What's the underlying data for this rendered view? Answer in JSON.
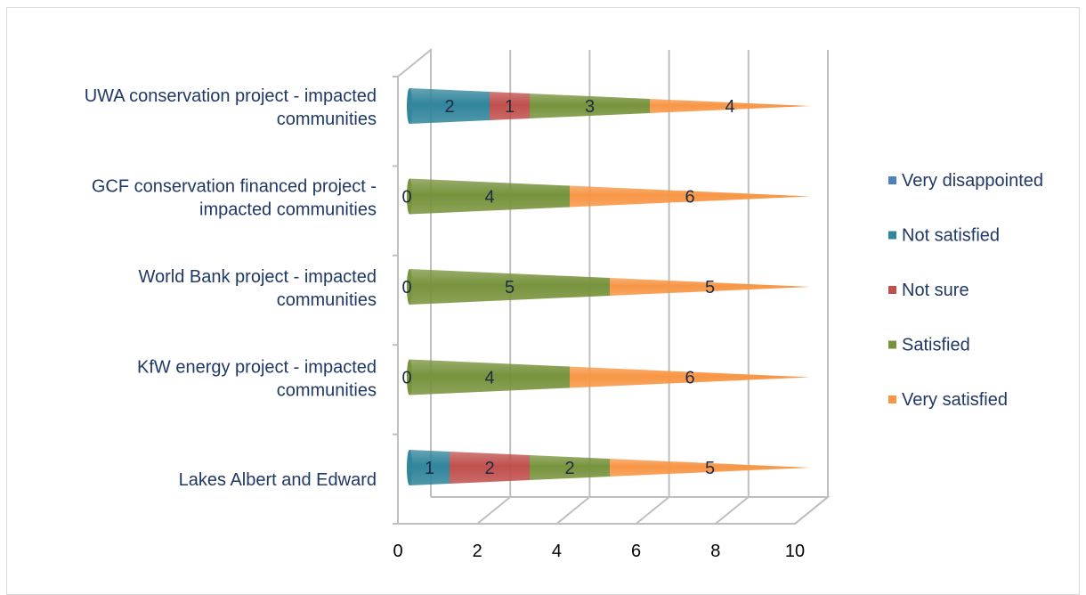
{
  "chart_data": {
    "type": "bar",
    "orientation": "horizontal",
    "stacked": true,
    "shape": "cone-3d",
    "categories": [
      [
        "UWA conservation project - impacted",
        "communities"
      ],
      [
        "GCF conservation financed project -",
        "impacted communities"
      ],
      [
        "World Bank project - impacted",
        "communities"
      ],
      [
        "KfW energy project - impacted",
        "communities"
      ],
      [
        "Lakes Albert and Edward"
      ]
    ],
    "series": [
      {
        "name": "Very disappointed",
        "color": "#4f81bd",
        "values": [
          0,
          0,
          0,
          0,
          0
        ]
      },
      {
        "name": "Not satisfied",
        "color": "#31859c",
        "values": [
          2,
          0,
          0,
          0,
          1
        ]
      },
      {
        "name": "Not sure",
        "color": "#c0504d",
        "values": [
          1,
          0,
          0,
          0,
          2
        ]
      },
      {
        "name": "Satisfied",
        "color": "#77933c",
        "values": [
          3,
          4,
          5,
          4,
          2
        ]
      },
      {
        "name": "Very satisfied",
        "color": "#f79646",
        "values": [
          4,
          6,
          5,
          6,
          5
        ]
      }
    ],
    "data_labels": [
      [
        null,
        "2",
        "1",
        "3",
        "4"
      ],
      [
        "0",
        null,
        null,
        "4",
        "6"
      ],
      [
        "0",
        null,
        null,
        "5",
        "5"
      ],
      [
        "0",
        null,
        null,
        "4",
        "6"
      ],
      [
        null,
        "1",
        "2",
        "2",
        "5"
      ]
    ],
    "x_ticks": [
      "0",
      "2",
      "4",
      "6",
      "8",
      "10"
    ],
    "xlim": [
      0,
      10
    ],
    "legend_position": "right",
    "grid": true
  }
}
